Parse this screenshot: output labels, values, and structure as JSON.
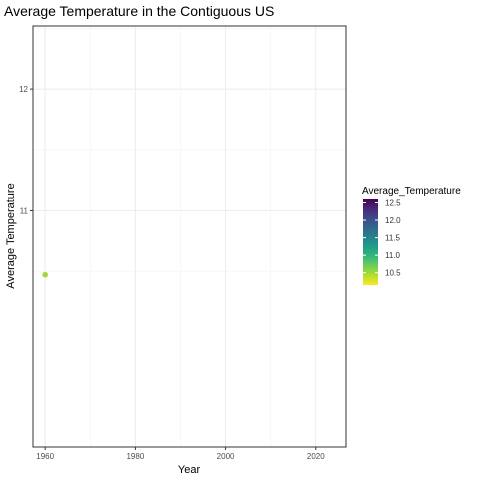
{
  "chart_data": {
    "type": "scatter",
    "title": "Average Temperature in the Contiguous US",
    "xlabel": "Year",
    "ylabel": "Average Temperature",
    "xlim": [
      1957.3,
      2026.7
    ],
    "ylim": [
      9.05,
      12.52
    ],
    "x_ticks": [
      1960,
      1980,
      2000,
      2020
    ],
    "x_tick_labels": [
      "1960",
      "1980",
      "2000",
      "2020"
    ],
    "y_ticks": [
      11,
      12
    ],
    "y_tick_labels": [
      "11",
      "12"
    ],
    "grid": true,
    "points": [
      {
        "x": 1960,
        "y": 10.47,
        "color": "#a0da39"
      }
    ],
    "legend": {
      "title": "Average_Temperature",
      "placement": "right",
      "colorbar_range": [
        10.15,
        12.6
      ],
      "breaks": [
        10.5,
        11.0,
        11.5,
        12.0,
        12.5
      ],
      "break_labels": [
        "10.5",
        "11.0",
        "11.5",
        "12.0",
        "12.5"
      ],
      "colors": [
        "#fde725",
        "#b5de2b",
        "#6ece58",
        "#35b779",
        "#1f9e89",
        "#26828e",
        "#31688e",
        "#3e4989",
        "#482878",
        "#440154"
      ]
    }
  }
}
